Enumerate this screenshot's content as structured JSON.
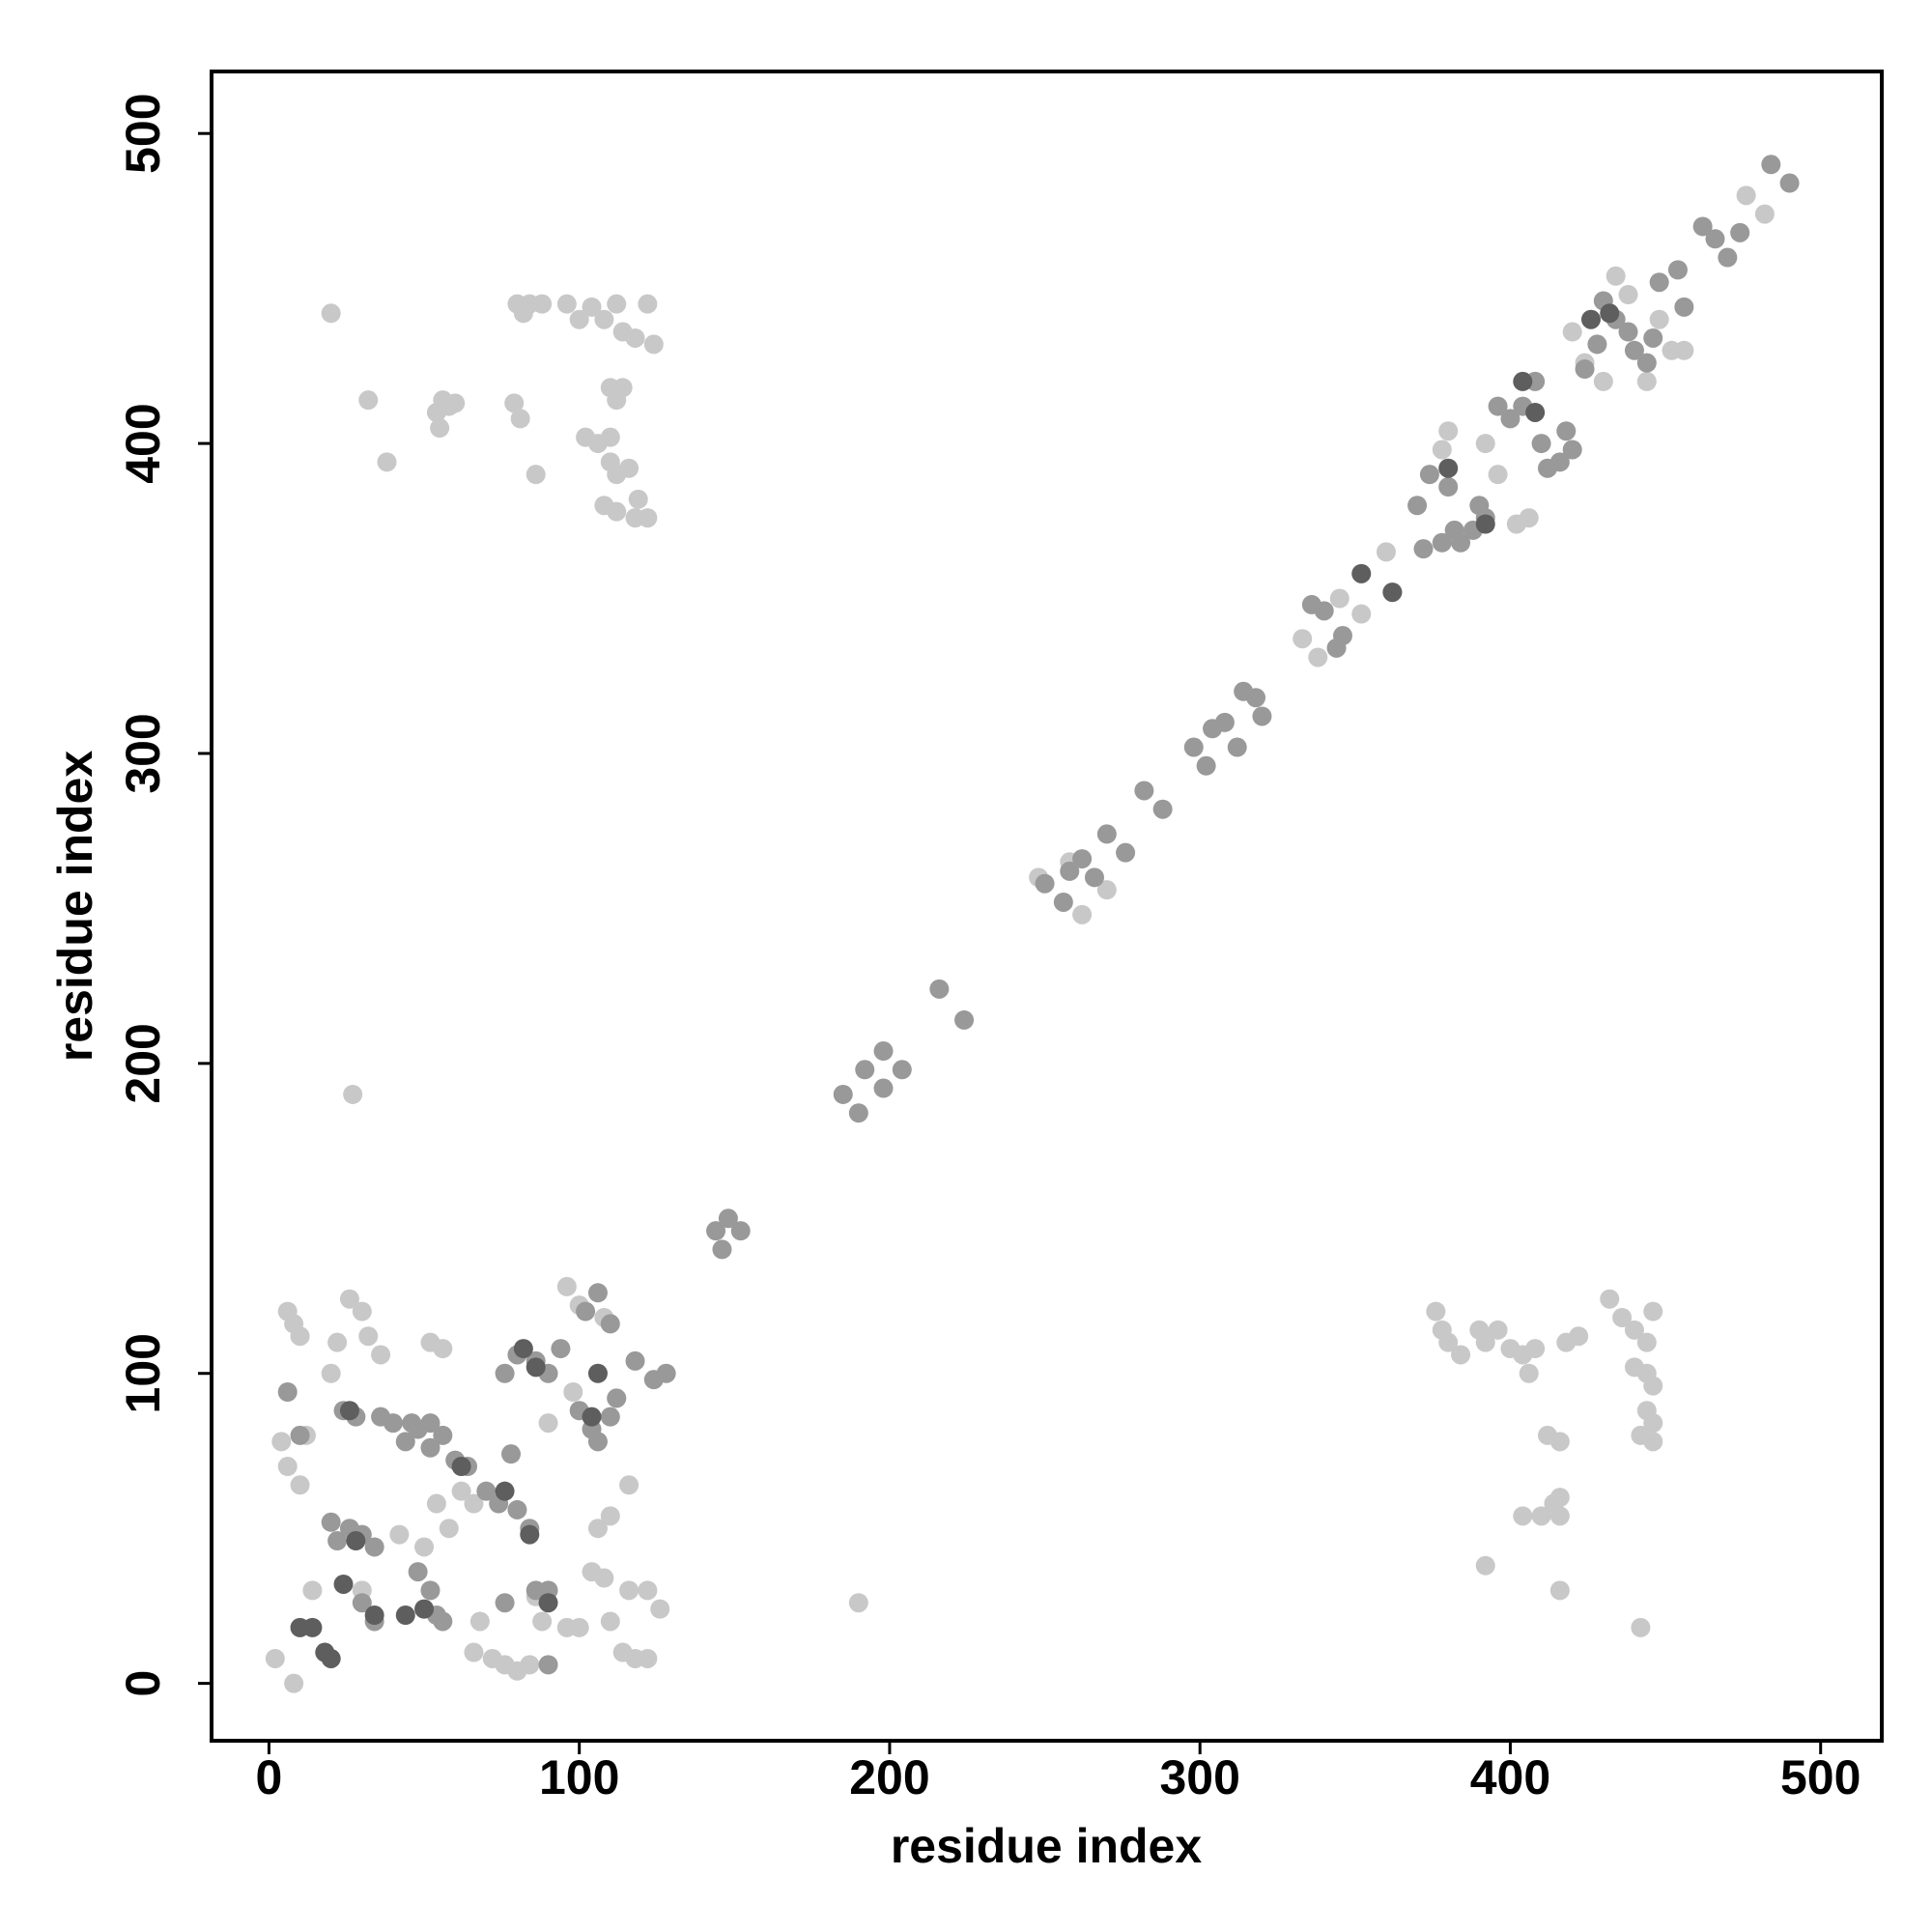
{
  "chart_data": {
    "type": "scatter",
    "x_label": "residue index",
    "y_label": "residue index",
    "xlim": [
      -18.5,
      519.7
    ],
    "ylim": [
      -18.5,
      520
    ],
    "xticks": [
      0,
      100,
      200,
      300,
      400,
      500
    ],
    "yticks": [
      0,
      100,
      200,
      300,
      400,
      500
    ],
    "grid": false,
    "series": [
      {
        "color": "#c8c8c8",
        "x": [
          20,
          32,
          38,
          54,
          56,
          58,
          60,
          55,
          79,
          81,
          80,
          82,
          84,
          88,
          86,
          96,
          100,
          104,
          108,
          112,
          114,
          118,
          122,
          124,
          110,
          112,
          114,
          102,
          106,
          110,
          110,
          112,
          116,
          108,
          112,
          118,
          122,
          119,
          27,
          190,
          333,
          338,
          345,
          352,
          360,
          378,
          380,
          392,
          396,
          402,
          406,
          420,
          424,
          430,
          434,
          438,
          444,
          448,
          452,
          456,
          476,
          482,
          258,
          262,
          270,
          248,
          376,
          378,
          380,
          384,
          390,
          392,
          396,
          400,
          404,
          406,
          408,
          412,
          416,
          404,
          410,
          414,
          416,
          416,
          392,
          416,
          418,
          422,
          432,
          436,
          440,
          444,
          446,
          440,
          444,
          446,
          444,
          446,
          442,
          446,
          442,
          2,
          8,
          6,
          8,
          10,
          4,
          6,
          10,
          12,
          20,
          22,
          26,
          30,
          32,
          36,
          14,
          30,
          42,
          50,
          54,
          58,
          62,
          66,
          68,
          66,
          72,
          76,
          80,
          84,
          88,
          86,
          96,
          100,
          104,
          108,
          110,
          114,
          118,
          122,
          116,
          122,
          126,
          106,
          110,
          112,
          98,
          108,
          52,
          56,
          96,
          100,
          90,
          116
        ],
        "y": [
          442,
          414,
          394,
          410,
          414,
          412,
          413,
          405,
          413,
          408,
          445,
          442,
          445,
          445,
          390,
          445,
          440,
          444,
          440,
          445,
          436,
          434,
          445,
          432,
          418,
          414,
          418,
          402,
          400,
          402,
          394,
          390,
          392,
          380,
          378,
          376,
          376,
          382,
          190,
          26,
          337,
          331,
          350,
          345,
          365,
          398,
          404,
          400,
          390,
          374,
          376,
          436,
          426,
          420,
          454,
          448,
          420,
          440,
          430,
          430,
          480,
          474,
          265,
          248,
          256,
          260,
          120,
          114,
          110,
          106,
          114,
          110,
          114,
          108,
          106,
          100,
          108,
          80,
          78,
          54,
          54,
          58,
          60,
          54,
          38,
          30,
          110,
          112,
          124,
          118,
          114,
          110,
          120,
          102,
          100,
          96,
          88,
          84,
          80,
          78,
          18,
          8,
          0,
          120,
          116,
          112,
          78,
          70,
          64,
          80,
          100,
          110,
          124,
          120,
          112,
          106,
          30,
          30,
          48,
          44,
          58,
          50,
          62,
          58,
          20,
          10,
          8,
          6,
          4,
          6,
          20,
          28,
          18,
          18,
          36,
          34,
          20,
          10,
          8,
          8,
          30,
          30,
          24,
          50,
          54,
          92,
          94,
          118,
          110,
          108,
          128,
          122,
          84,
          64
        ]
      },
      {
        "color": "#999999",
        "x": [
          144,
          148,
          152,
          146,
          185,
          190,
          192,
          198,
          198,
          204,
          216,
          224,
          258,
          262,
          266,
          270,
          276,
          250,
          256,
          282,
          288,
          298,
          302,
          304,
          308,
          312,
          314,
          318,
          320,
          336,
          340,
          344,
          346,
          362,
          370,
          374,
          380,
          382,
          384,
          388,
          390,
          392,
          396,
          400,
          404,
          408,
          410,
          412,
          416,
          418,
          420,
          424,
          428,
          430,
          434,
          438,
          440,
          444,
          446,
          448,
          454,
          456,
          462,
          466,
          470,
          474,
          484,
          490,
          372,
          378,
          6,
          10,
          20,
          22,
          26,
          30,
          34,
          36,
          40,
          44,
          48,
          52,
          56,
          60,
          64,
          70,
          74,
          78,
          80,
          84,
          86,
          90,
          76,
          80,
          86,
          90,
          94,
          100,
          104,
          106,
          110,
          112,
          102,
          106,
          110,
          118,
          124,
          128,
          30,
          34,
          48,
          52,
          54,
          56,
          90,
          24,
          28,
          76,
          46,
          52
        ],
        "y": [
          146,
          150,
          146,
          140,
          190,
          184,
          198,
          204,
          192,
          198,
          224,
          214,
          262,
          266,
          260,
          274,
          268,
          258,
          252,
          288,
          282,
          302,
          296,
          308,
          310,
          302,
          320,
          318,
          312,
          348,
          346,
          334,
          338,
          352,
          380,
          390,
          386,
          372,
          368,
          372,
          380,
          376,
          412,
          408,
          412,
          420,
          400,
          392,
          394,
          404,
          398,
          424,
          432,
          446,
          440,
          436,
          430,
          426,
          434,
          452,
          456,
          444,
          470,
          466,
          460,
          468,
          490,
          484,
          366,
          368,
          94,
          80,
          52,
          46,
          50,
          48,
          44,
          86,
          84,
          78,
          82,
          84,
          80,
          72,
          70,
          62,
          58,
          74,
          56,
          50,
          30,
          30,
          100,
          106,
          104,
          100,
          108,
          88,
          82,
          78,
          86,
          92,
          120,
          126,
          116,
          104,
          98,
          100,
          26,
          20,
          36,
          30,
          22,
          20,
          6,
          88,
          86,
          26,
          84,
          76
        ]
      },
      {
        "color": "#5e5e5e",
        "x": [
          10,
          14,
          18,
          20,
          34,
          24,
          26,
          44,
          50,
          84,
          90,
          86,
          104,
          76,
          62,
          352,
          362,
          432,
          392,
          404,
          408,
          426,
          380,
          82,
          106,
          28
        ],
        "y": [
          18,
          18,
          10,
          8,
          22,
          32,
          88,
          22,
          24,
          48,
          26,
          102,
          86,
          62,
          70,
          358,
          352,
          442,
          374,
          420,
          410,
          440,
          392,
          108,
          100,
          46
        ]
      }
    ]
  }
}
